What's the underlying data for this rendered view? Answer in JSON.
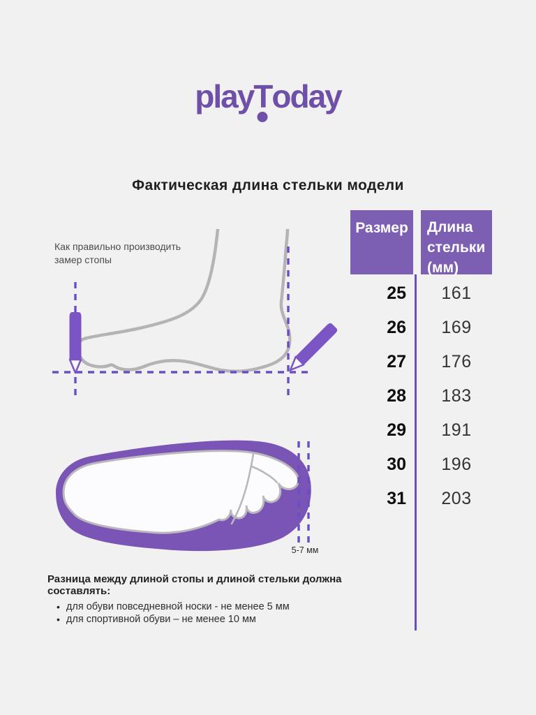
{
  "brand": {
    "part1": "play",
    "part2": "T",
    "part3": "oday"
  },
  "title": "Фактическая длина стельки модели",
  "measurement_note": {
    "line1": "Как правильно производить",
    "line2": "замер стопы"
  },
  "insole_gap_label": "5-7 мм",
  "size_table": {
    "col1_header": "Размер",
    "col2_header_lines": [
      "Длина",
      "стельки",
      "(мм)"
    ],
    "rows": [
      {
        "size": "25",
        "insole_length_mm": "161"
      },
      {
        "size": "26",
        "insole_length_mm": "169"
      },
      {
        "size": "27",
        "insole_length_mm": "176"
      },
      {
        "size": "28",
        "insole_length_mm": "183"
      },
      {
        "size": "29",
        "insole_length_mm": "191"
      },
      {
        "size": "30",
        "insole_length_mm": "196"
      },
      {
        "size": "31",
        "insole_length_mm": "203"
      }
    ]
  },
  "footnote": {
    "heading": "Разница между длиной стопы и длиной стельки должна составлять:",
    "bullets": [
      "для обуви повседневной носки -  не менее 5 мм",
      "для спортивной обуви – не менее 10 мм"
    ]
  },
  "colors": {
    "background": "#f2f1f2",
    "brand_purple": "#6f50a8",
    "header_purple": "#7c5eb3",
    "accent_purple": "#6a4ec6",
    "pencil_purple": "#7b55c4",
    "insole_purple": "#7a55b5",
    "foot_gray": "#b5b3b5",
    "outline_gray": "#bab7bd",
    "text_dark": "#1f1f1f",
    "text_gray": "#4a4a4a"
  }
}
